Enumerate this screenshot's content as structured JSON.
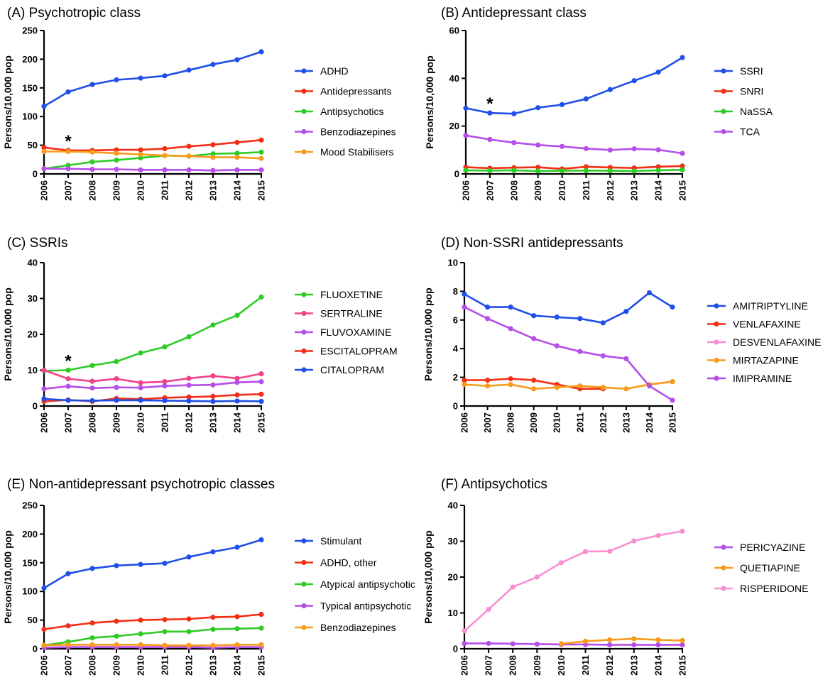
{
  "chart_data": [
    {
      "type": "line",
      "title": "(A) Psychotropic class",
      "xlabel": "",
      "ylabel": "Persons/10,000 pop",
      "x": [
        "2006",
        "2007",
        "2008",
        "2009",
        "2010",
        "2011",
        "2012",
        "2013",
        "2014",
        "2015"
      ],
      "ylim": [
        0,
        250
      ],
      "yticks": [
        0,
        50,
        100,
        150,
        200,
        250
      ],
      "legend": "right",
      "annotation": {
        "text": "*",
        "x": "2007"
      },
      "series": [
        {
          "name": "ADHD",
          "color": "#1f4fe8",
          "values": [
            118,
            143,
            156,
            164,
            167,
            171,
            181,
            191,
            199,
            213
          ]
        },
        {
          "name": "Antidepressants",
          "color": "#f42e14",
          "values": [
            46,
            41,
            41,
            42,
            42,
            44,
            48,
            51,
            55,
            59
          ]
        },
        {
          "name": "Antipsychotics",
          "color": "#2ecb26",
          "values": [
            9,
            15,
            21,
            24,
            28,
            32,
            31,
            35,
            36,
            38
          ]
        },
        {
          "name": "Benzodiazepines",
          "color": "#b64ee8",
          "values": [
            9,
            9,
            8,
            8,
            7,
            7,
            7,
            6,
            7,
            7
          ]
        },
        {
          "name": "Mood Stabilisers",
          "color": "#f89b1b",
          "values": [
            39,
            39,
            38,
            36,
            34,
            32,
            31,
            29,
            29,
            27
          ]
        }
      ]
    },
    {
      "type": "line",
      "title": "(B) Antidepressant class",
      "xlabel": "",
      "ylabel": "Persons/10,000 pop",
      "x": [
        "2006",
        "2007",
        "2008",
        "2009",
        "2010",
        "2011",
        "2012",
        "2013",
        "2014",
        "2015"
      ],
      "ylim": [
        0,
        60
      ],
      "yticks": [
        0,
        20,
        40,
        60
      ],
      "legend": "right",
      "annotation": {
        "text": "*",
        "x": "2007"
      },
      "series": [
        {
          "name": "SSRI",
          "color": "#1f4fe8",
          "values": [
            27.5,
            25.5,
            25.2,
            27.7,
            29.0,
            31.4,
            35.3,
            39.0,
            42.6,
            48.7
          ]
        },
        {
          "name": "SNRI",
          "color": "#f42e14",
          "values": [
            2.8,
            2.4,
            2.6,
            2.8,
            2.1,
            3.0,
            2.7,
            2.5,
            3.0,
            3.3
          ]
        },
        {
          "name": "NaSSA",
          "color": "#2ecb26",
          "values": [
            1.5,
            1.4,
            1.5,
            1.2,
            1.3,
            1.4,
            1.3,
            1.2,
            1.5,
            1.7
          ]
        },
        {
          "name": "TCA",
          "color": "#b64ee8",
          "values": [
            16.1,
            14.4,
            13.1,
            12.1,
            11.5,
            10.6,
            10.0,
            10.5,
            10.1,
            8.6
          ]
        }
      ]
    },
    {
      "type": "line",
      "title": "(C) SSRIs",
      "xlabel": "",
      "ylabel": "Persons/10,000 pop",
      "x": [
        "2006",
        "2007",
        "2008",
        "2009",
        "2010",
        "2011",
        "2012",
        "2013",
        "2014",
        "2015"
      ],
      "ylim": [
        0,
        40
      ],
      "yticks": [
        0,
        10,
        20,
        30,
        40
      ],
      "legend": "right",
      "annotation": {
        "text": "*",
        "x": "2007"
      },
      "series": [
        {
          "name": "FLUOXETINE",
          "color": "#2ecb26",
          "values": [
            9.8,
            10.0,
            11.3,
            12.4,
            14.8,
            16.5,
            19.3,
            22.6,
            25.3,
            30.4
          ]
        },
        {
          "name": "SERTRALINE",
          "color": "#f2418a",
          "values": [
            10.0,
            7.6,
            6.9,
            7.6,
            6.5,
            6.8,
            7.7,
            8.4,
            7.7,
            9.0
          ]
        },
        {
          "name": "FLUVOXAMINE",
          "color": "#b64ee8",
          "values": [
            4.8,
            5.5,
            5.0,
            5.2,
            5.1,
            5.6,
            5.8,
            5.9,
            6.6,
            6.8
          ]
        },
        {
          "name": "ESCITALOPRAM",
          "color": "#f42e14",
          "values": [
            1.3,
            1.7,
            1.3,
            2.1,
            1.9,
            2.3,
            2.5,
            2.7,
            3.1,
            3.3
          ]
        },
        {
          "name": "CITALOPRAM",
          "color": "#1f4fe8",
          "values": [
            2.0,
            1.6,
            1.5,
            1.6,
            1.6,
            1.5,
            1.4,
            1.3,
            1.4,
            1.3
          ]
        }
      ]
    },
    {
      "type": "line",
      "title": "(D) Non-SSRI antidepressants",
      "xlabel": "",
      "ylabel": "Persons/10,000 pop",
      "x": [
        "2006",
        "2007",
        "2008",
        "2009",
        "2010",
        "2011",
        "2012",
        "2013",
        "2014",
        "2015"
      ],
      "ylim": [
        0,
        10
      ],
      "yticks": [
        0,
        2,
        4,
        6,
        8,
        10
      ],
      "legend": "right",
      "series": [
        {
          "name": "AMITRIPTYLINE",
          "color": "#1f4fe8",
          "values": [
            7.8,
            6.9,
            6.9,
            6.3,
            6.2,
            6.1,
            5.8,
            6.6,
            7.9,
            6.9
          ]
        },
        {
          "name": "VENLAFAXINE",
          "color": "#f42e14",
          "values": [
            1.8,
            1.8,
            1.9,
            1.8,
            1.5,
            1.2,
            1.2,
            null,
            null,
            null
          ]
        },
        {
          "name": "DESVENLAFAXINE",
          "color": "#f78fd0",
          "values": [
            null,
            null,
            null,
            null,
            null,
            null,
            null,
            null,
            1.5,
            1.7
          ]
        },
        {
          "name": "MIRTAZAPINE",
          "color": "#f89b1b",
          "values": [
            1.5,
            1.4,
            1.5,
            1.2,
            1.3,
            1.4,
            1.3,
            1.2,
            1.5,
            1.7
          ]
        },
        {
          "name": "IMIPRAMINE",
          "color": "#b64ee8",
          "values": [
            6.9,
            6.1,
            5.4,
            4.7,
            4.2,
            3.8,
            3.5,
            3.3,
            1.4,
            0.4
          ]
        }
      ]
    },
    {
      "type": "line",
      "title": "(E) Non-antidepressant psychotropic classes",
      "xlabel": "",
      "ylabel": "Persons/10,000 pop",
      "x": [
        "2006",
        "2007",
        "2008",
        "2009",
        "2010",
        "2011",
        "2012",
        "2013",
        "2014",
        "2015"
      ],
      "ylim": [
        0,
        250
      ],
      "yticks": [
        0,
        50,
        100,
        150,
        200,
        250
      ],
      "legend": "right",
      "series": [
        {
          "name": "Stimulant",
          "color": "#1f4fe8",
          "values": [
            106,
            131,
            140,
            145,
            147,
            149,
            160,
            169,
            177,
            190
          ]
        },
        {
          "name": "ADHD, other",
          "color": "#f42e14",
          "values": [
            34,
            40,
            45,
            48,
            50,
            51,
            52,
            55,
            56,
            60
          ]
        },
        {
          "name": "Atypical antipsychotic",
          "color": "#2ecb26",
          "values": [
            6,
            12,
            19,
            22,
            26,
            30,
            30,
            34,
            35,
            36
          ]
        },
        {
          "name": "Typical antipsychotic",
          "color": "#b64ee8",
          "values": [
            2,
            3,
            3,
            3,
            3,
            3,
            3,
            2,
            3,
            3
          ]
        },
        {
          "name": "Benzodiazepines",
          "color": "#f89b1b",
          "values": [
            6,
            7,
            7,
            7,
            7,
            6,
            6,
            6,
            7,
            7
          ]
        }
      ]
    },
    {
      "type": "line",
      "title": "(F) Antipsychotics",
      "xlabel": "",
      "ylabel": "Persons/10,000 pop",
      "x": [
        "2006",
        "2007",
        "2008",
        "2009",
        "2010",
        "2011",
        "2012",
        "2013",
        "2014",
        "2015"
      ],
      "ylim": [
        0,
        40
      ],
      "yticks": [
        0,
        10,
        20,
        30,
        40
      ],
      "legend": "right",
      "series": [
        {
          "name": "PERICYAZINE",
          "color": "#b64ee8",
          "values": [
            1.5,
            1.5,
            1.4,
            1.3,
            1.2,
            1.2,
            1.1,
            1.1,
            1.1,
            1.1
          ]
        },
        {
          "name": "QUETIAPINE",
          "color": "#f89b1b",
          "values": [
            null,
            null,
            null,
            null,
            1.4,
            2.1,
            2.5,
            2.8,
            2.5,
            2.3
          ]
        },
        {
          "name": "RISPERIDONE",
          "color": "#f78fd0",
          "values": [
            5.0,
            11.0,
            17.2,
            20.0,
            24.0,
            27.1,
            27.2,
            30.1,
            31.6,
            32.8
          ]
        }
      ]
    }
  ]
}
